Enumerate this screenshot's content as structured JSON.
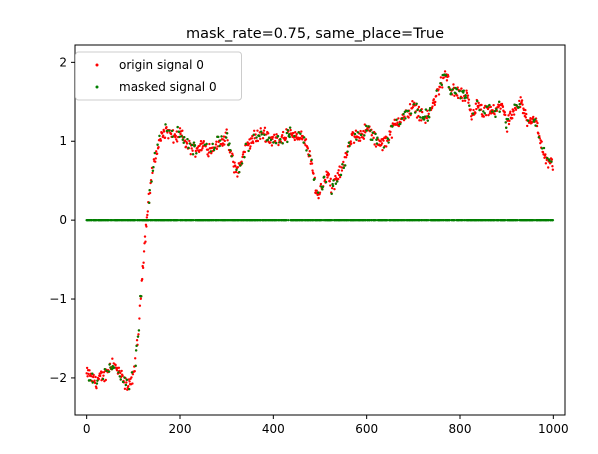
{
  "chart_data": {
    "type": "scatter",
    "title": "mask_rate=0.75, same_place=True",
    "xlabel": "",
    "ylabel": "",
    "xlim": [
      -25,
      1025
    ],
    "ylim": [
      -2.47,
      2.22
    ],
    "x_ticks": [
      0,
      200,
      400,
      600,
      800,
      1000
    ],
    "y_ticks": [
      -2,
      -1,
      0,
      1,
      2
    ],
    "grid": false,
    "legend_position": "top-left",
    "mask_rate": 0.75,
    "n_points": 1000,
    "series": [
      {
        "name": "origin signal 0",
        "color": "#ff0000",
        "marker": "dot",
        "anchors": [
          [
            0,
            -1.95
          ],
          [
            20,
            -2.05
          ],
          [
            40,
            -1.95
          ],
          [
            55,
            -1.8
          ],
          [
            70,
            -1.95
          ],
          [
            85,
            -2.1
          ],
          [
            100,
            -2.0
          ],
          [
            110,
            -1.5
          ],
          [
            120,
            -0.6
          ],
          [
            130,
            0.1
          ],
          [
            140,
            0.6
          ],
          [
            155,
            1.0
          ],
          [
            170,
            1.15
          ],
          [
            185,
            1.05
          ],
          [
            200,
            1.1
          ],
          [
            215,
            0.95
          ],
          [
            230,
            0.9
          ],
          [
            250,
            0.95
          ],
          [
            265,
            0.9
          ],
          [
            285,
            1.0
          ],
          [
            300,
            1.05
          ],
          [
            315,
            0.7
          ],
          [
            325,
            0.62
          ],
          [
            340,
            0.9
          ],
          [
            360,
            1.05
          ],
          [
            380,
            1.1
          ],
          [
            400,
            1.0
          ],
          [
            420,
            1.05
          ],
          [
            440,
            1.1
          ],
          [
            460,
            1.05
          ],
          [
            475,
            0.9
          ],
          [
            485,
            0.6
          ],
          [
            495,
            0.3
          ],
          [
            505,
            0.45
          ],
          [
            515,
            0.6
          ],
          [
            525,
            0.4
          ],
          [
            540,
            0.55
          ],
          [
            555,
            0.8
          ],
          [
            570,
            1.05
          ],
          [
            590,
            1.1
          ],
          [
            605,
            1.15
          ],
          [
            620,
            1.0
          ],
          [
            635,
            0.95
          ],
          [
            650,
            1.1
          ],
          [
            665,
            1.25
          ],
          [
            680,
            1.3
          ],
          [
            700,
            1.45
          ],
          [
            715,
            1.35
          ],
          [
            730,
            1.3
          ],
          [
            745,
            1.5
          ],
          [
            760,
            1.75
          ],
          [
            770,
            1.85
          ],
          [
            780,
            1.65
          ],
          [
            800,
            1.6
          ],
          [
            815,
            1.55
          ],
          [
            825,
            1.3
          ],
          [
            835,
            1.45
          ],
          [
            850,
            1.35
          ],
          [
            865,
            1.4
          ],
          [
            875,
            1.35
          ],
          [
            890,
            1.5
          ],
          [
            900,
            1.2
          ],
          [
            915,
            1.35
          ],
          [
            930,
            1.5
          ],
          [
            945,
            1.25
          ],
          [
            960,
            1.3
          ],
          [
            970,
            1.05
          ],
          [
            985,
            0.75
          ],
          [
            999,
            0.7
          ]
        ],
        "noise": 0.07
      },
      {
        "name": "masked signal 0",
        "color": "#007f00",
        "marker": "dot",
        "masked_value": 0
      }
    ]
  }
}
